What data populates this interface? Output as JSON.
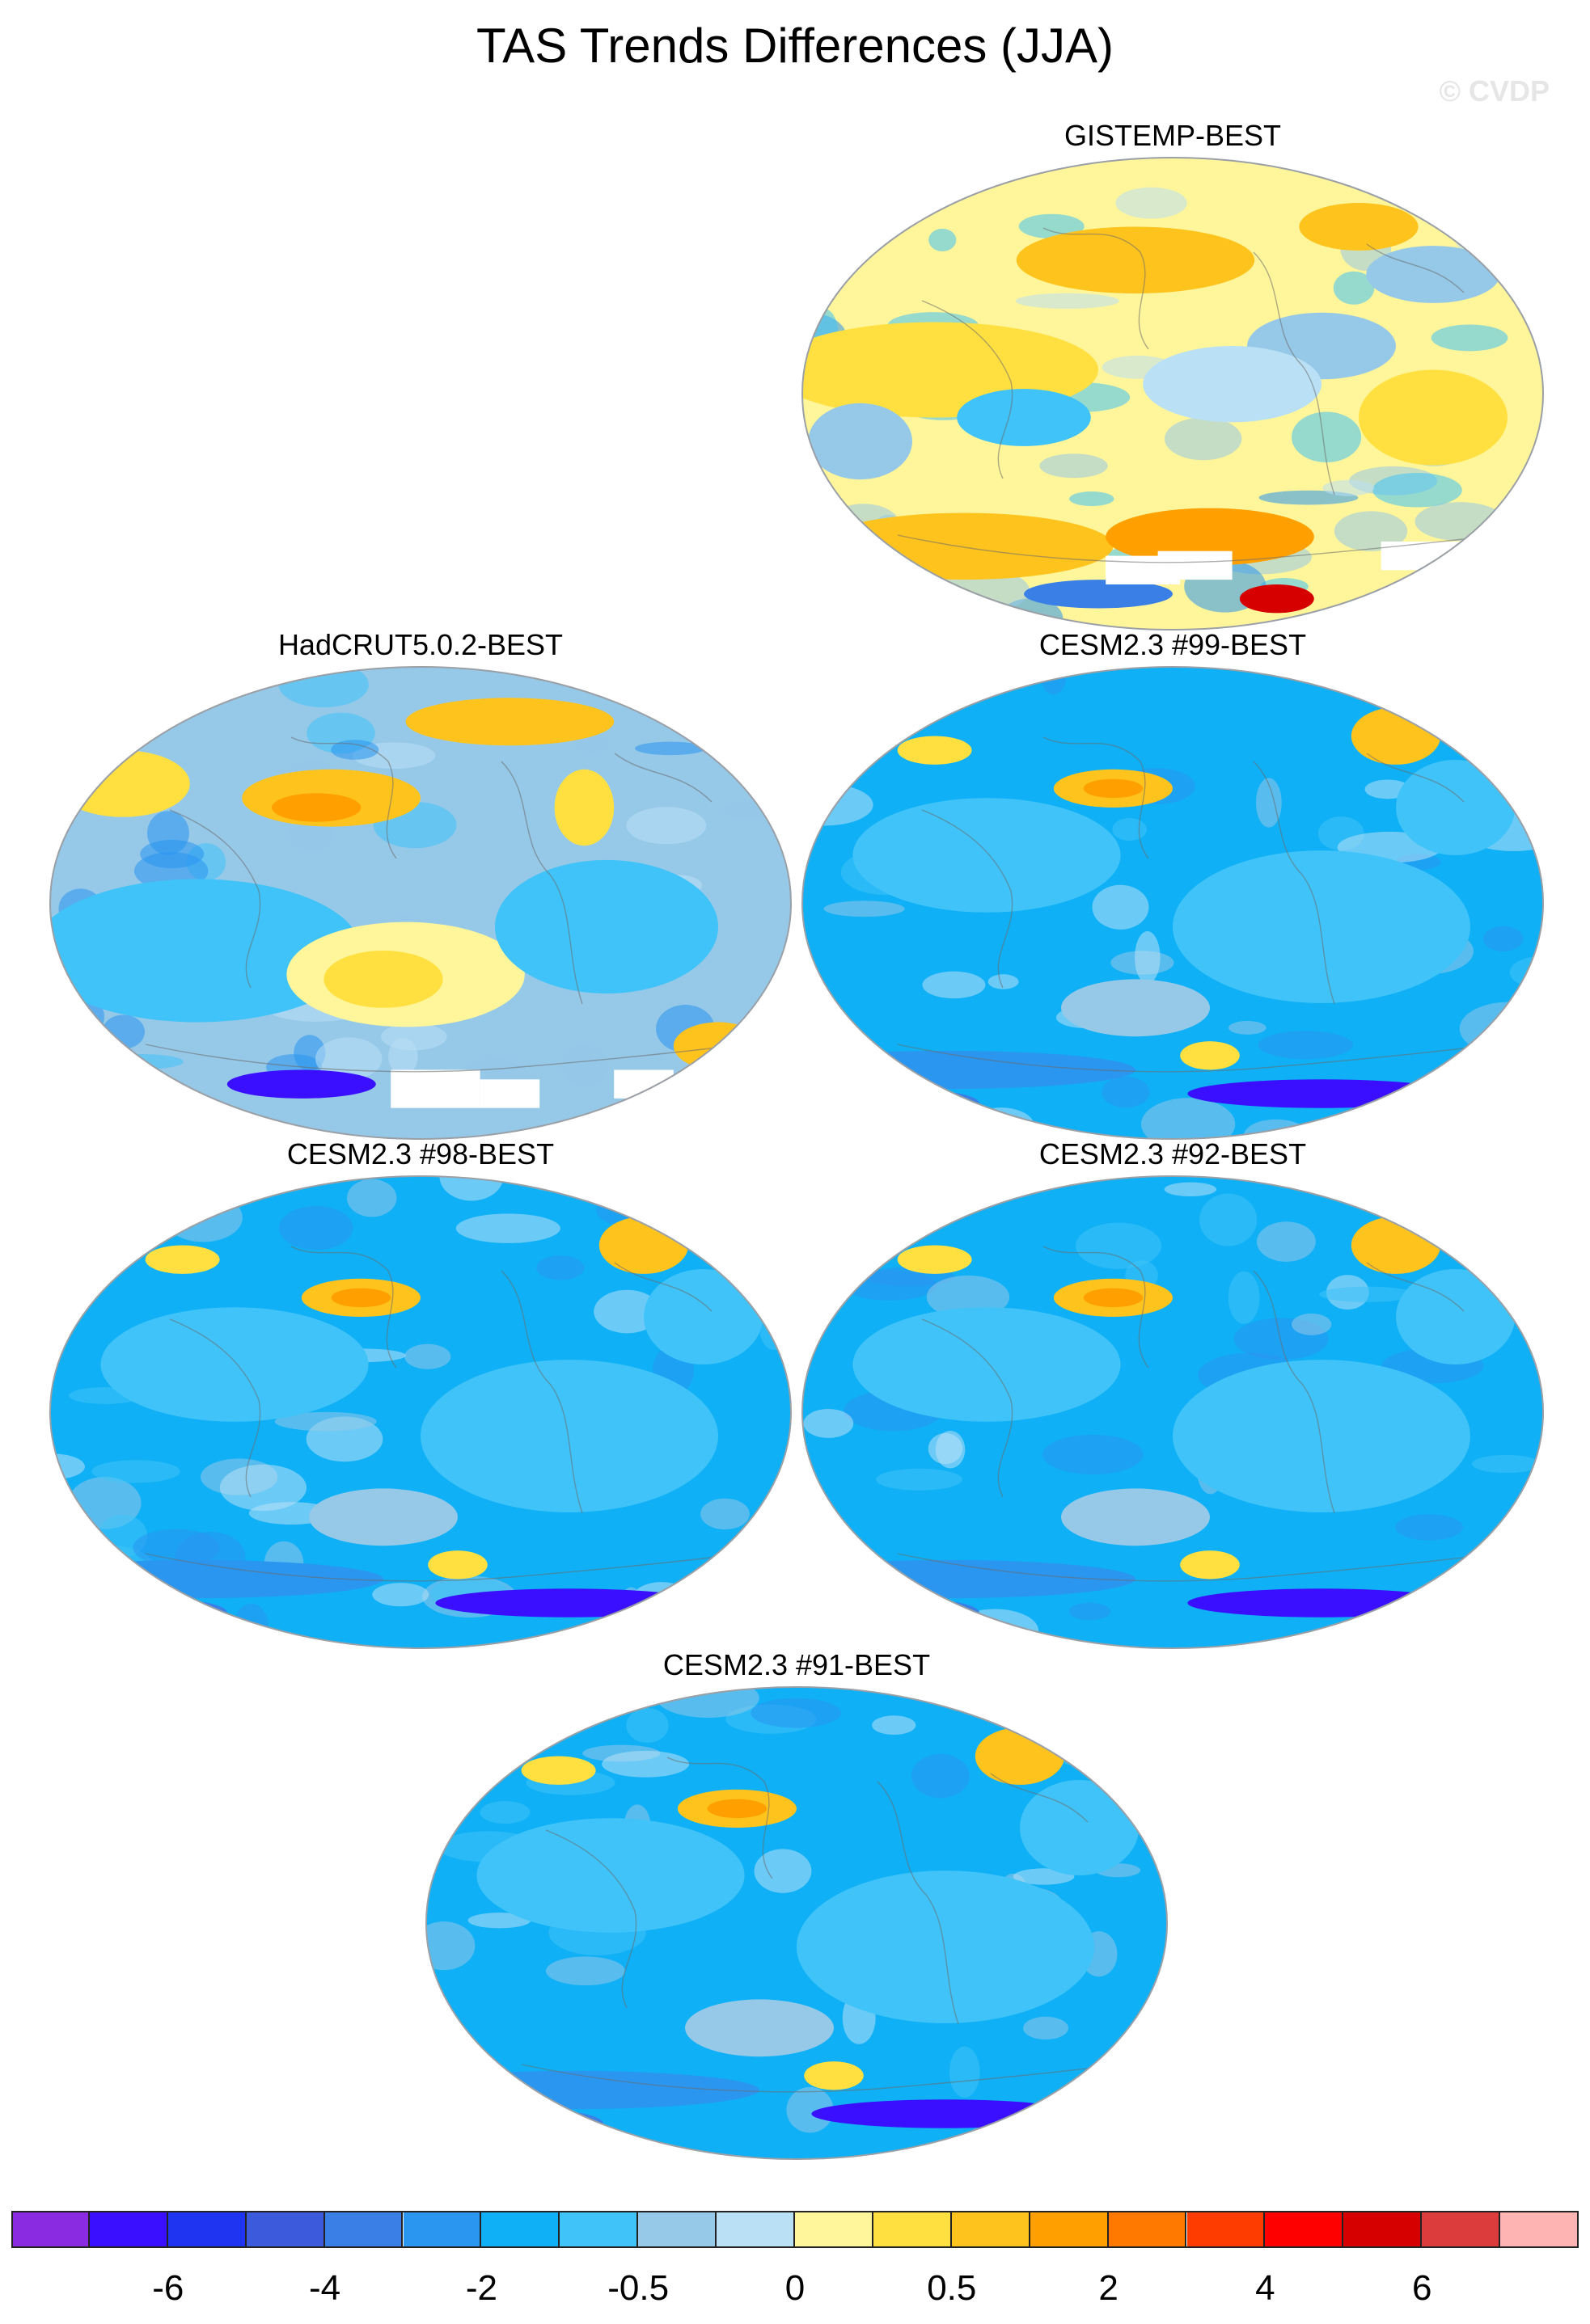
{
  "title": "TAS Trends Differences (JJA)",
  "watermark": "© CVDP",
  "panels": [
    {
      "title": "GISTEMP-BEST",
      "scheme": "obs_warm"
    },
    {
      "title": "HadCRUT5.0.2-BEST",
      "scheme": "obs_mixed"
    },
    {
      "title": "CESM2.3 #99-BEST",
      "scheme": "model"
    },
    {
      "title": "CESM2.3 #98-BEST",
      "scheme": "model"
    },
    {
      "title": "CESM2.3 #92-BEST",
      "scheme": "model"
    },
    {
      "title": "CESM2.3 #91-BEST",
      "scheme": "model"
    }
  ],
  "colorbar": {
    "colors": [
      "#8a2be2",
      "#3a0fff",
      "#1e34f0",
      "#3b5bdc",
      "#3a7fe6",
      "#2a96f0",
      "#0fb0f5",
      "#3fc3f8",
      "#96c8e8",
      "#b9e0f5",
      "#fff59a",
      "#ffe040",
      "#ffc31e",
      "#ffa000",
      "#ff7800",
      "#ff3c00",
      "#ff0000",
      "#d70000",
      "#dc3c3c",
      "#ffb4b4"
    ],
    "labels": [
      {
        "text": "-6",
        "boundary": 2
      },
      {
        "text": "-4",
        "boundary": 4
      },
      {
        "text": "-2",
        "boundary": 6
      },
      {
        "text": "-0.5",
        "boundary": 8
      },
      {
        "text": "0",
        "boundary": 10
      },
      {
        "text": "0.5",
        "boundary": 12
      },
      {
        "text": "2",
        "boundary": 14
      },
      {
        "text": "4",
        "boundary": 16
      },
      {
        "text": "6",
        "boundary": 18
      }
    ]
  }
}
